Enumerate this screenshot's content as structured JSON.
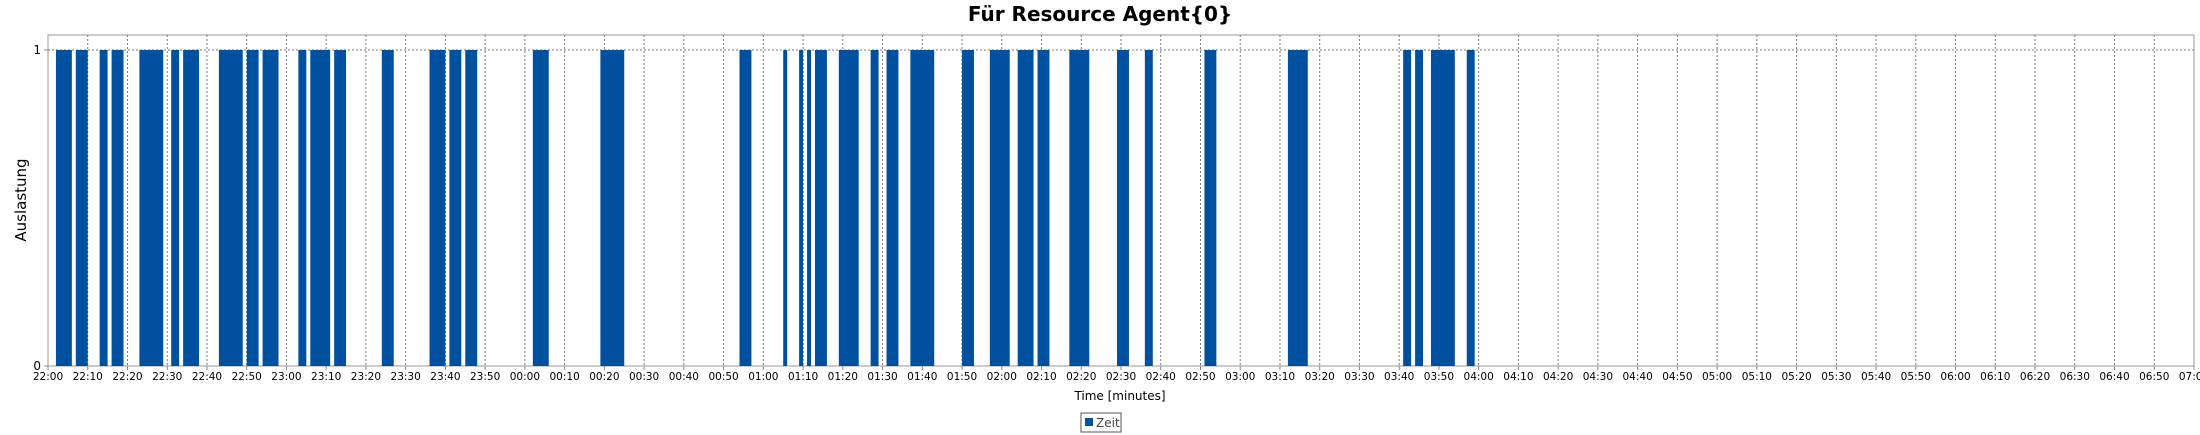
{
  "chart_data": {
    "type": "bar",
    "title": "Für Resource Agent{0}",
    "xlabel": "Time [minutes]",
    "ylabel": "Auslastung",
    "x_range": [
      "22:00",
      "07:00"
    ],
    "x_range_minutes": [
      0,
      540
    ],
    "ylim": [
      0,
      1
    ],
    "y_ticks": [
      "0",
      "1"
    ],
    "x_ticks": [
      "22:00",
      "22:10",
      "22:20",
      "22:30",
      "22:40",
      "22:50",
      "23:00",
      "23:10",
      "23:20",
      "23:30",
      "23:40",
      "23:50",
      "00:00",
      "00:10",
      "00:20",
      "00:30",
      "00:40",
      "00:50",
      "01:00",
      "01:10",
      "01:20",
      "01:30",
      "01:40",
      "01:50",
      "02:00",
      "02:10",
      "02:20",
      "02:30",
      "02:40",
      "02:50",
      "03:00",
      "03:10",
      "03:20",
      "03:30",
      "03:40",
      "03:50",
      "04:00",
      "04:10",
      "04:20",
      "04:30",
      "04:40",
      "04:50",
      "05:00",
      "05:10",
      "05:20",
      "05:30",
      "05:40",
      "05:50",
      "06:00",
      "06:10",
      "06:20",
      "06:30",
      "06:40",
      "06:50",
      "07:00"
    ],
    "grid": true,
    "legend_position": "bottom-center",
    "series": [
      {
        "name": "Zeit",
        "color": "#0050a0",
        "busy_intervals": [
          [
            "22:02",
            "22:06"
          ],
          [
            "22:07",
            "22:10"
          ],
          [
            "22:13",
            "22:15"
          ],
          [
            "22:16",
            "22:19"
          ],
          [
            "22:23",
            "22:29"
          ],
          [
            "22:31",
            "22:33"
          ],
          [
            "22:34",
            "22:38"
          ],
          [
            "22:43",
            "22:49"
          ],
          [
            "22:50",
            "22:53"
          ],
          [
            "22:54",
            "22:58"
          ],
          [
            "23:03",
            "23:05"
          ],
          [
            "23:06",
            "23:11"
          ],
          [
            "23:12",
            "23:15"
          ],
          [
            "23:24",
            "23:27"
          ],
          [
            "23:36",
            "23:40"
          ],
          [
            "23:41",
            "23:44"
          ],
          [
            "23:45",
            "23:48"
          ],
          [
            "00:02",
            "00:06"
          ],
          [
            "00:19",
            "00:25"
          ],
          [
            "00:54",
            "00:57"
          ],
          [
            "01:05",
            "01:06"
          ],
          [
            "01:09",
            "01:10"
          ],
          [
            "01:11",
            "01:12"
          ],
          [
            "01:13",
            "01:16"
          ],
          [
            "01:19",
            "01:24"
          ],
          [
            "01:27",
            "01:29"
          ],
          [
            "01:31",
            "01:34"
          ],
          [
            "01:37",
            "01:43"
          ],
          [
            "01:50",
            "01:53"
          ],
          [
            "01:57",
            "02:02"
          ],
          [
            "02:04",
            "02:08"
          ],
          [
            "02:09",
            "02:12"
          ],
          [
            "02:17",
            "02:22"
          ],
          [
            "02:29",
            "02:32"
          ],
          [
            "02:36",
            "02:38"
          ],
          [
            "02:51",
            "02:54"
          ],
          [
            "03:12",
            "03:17"
          ],
          [
            "03:41",
            "03:43"
          ],
          [
            "03:44",
            "03:46"
          ],
          [
            "03:48",
            "03:54"
          ],
          [
            "03:57",
            "03:59"
          ]
        ]
      }
    ]
  }
}
